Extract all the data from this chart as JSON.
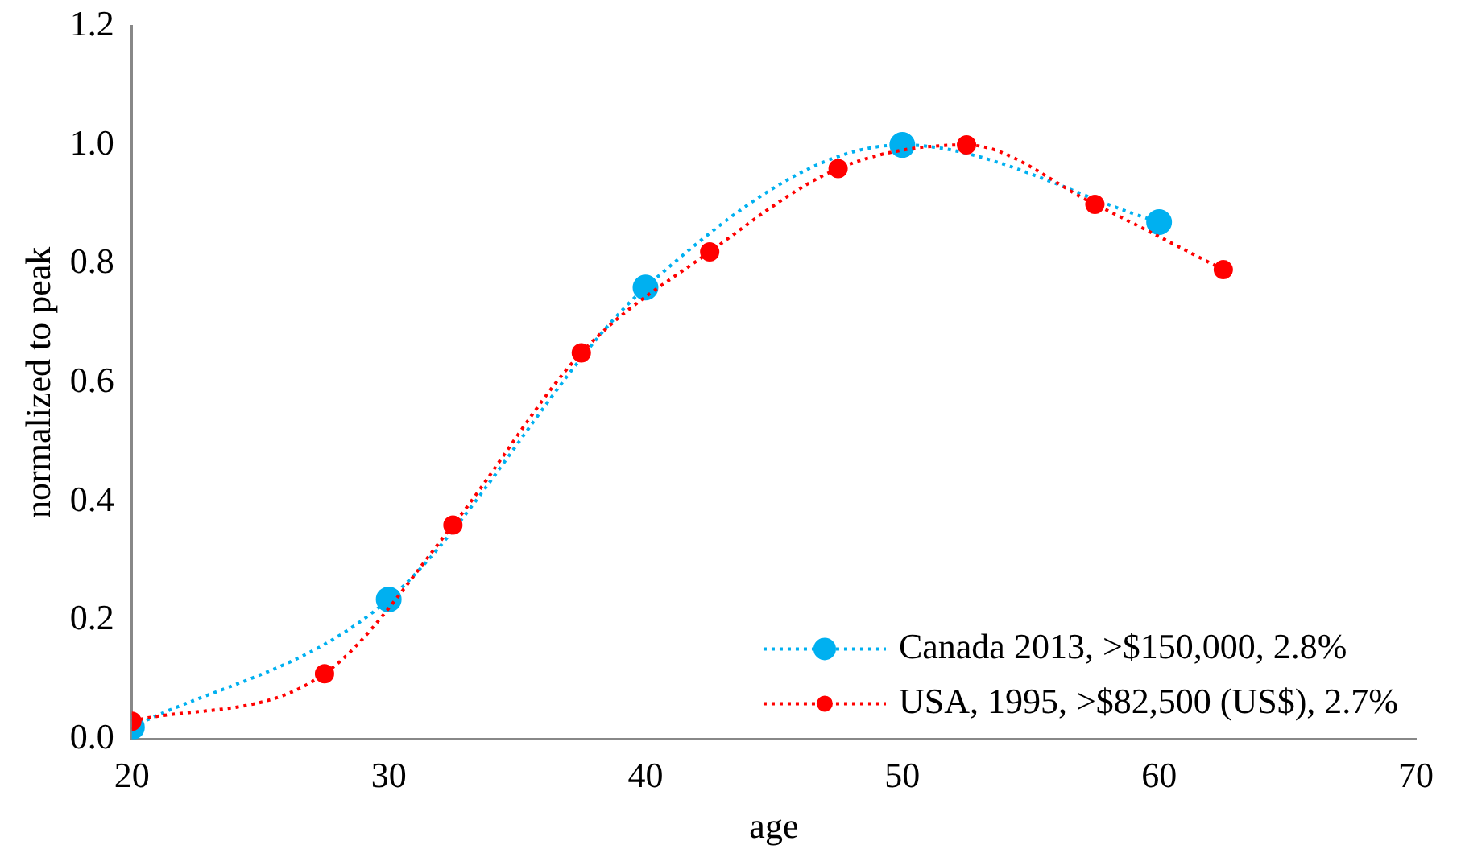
{
  "chart_data": {
    "type": "line",
    "xlabel": "age",
    "ylabel": "normalized to peak",
    "xlim": [
      20,
      70
    ],
    "xticks": [
      20,
      30,
      40,
      50,
      60,
      70
    ],
    "ylim": [
      0,
      1.2
    ],
    "yticks": [
      {
        "value": 0,
        "label": "0.0"
      },
      {
        "value": 0.2,
        "label": "0.2"
      },
      {
        "value": 0.4,
        "label": "0.4"
      },
      {
        "value": 0.6,
        "label": "0.6"
      },
      {
        "value": 0.8,
        "label": "0.8"
      },
      {
        "value": 1,
        "label": "1.0"
      },
      {
        "value": 1.2,
        "label": "1.2"
      }
    ],
    "grid": false,
    "legend": "bottom right",
    "marker": "circle",
    "line_style": "dotted",
    "series": [
      {
        "name": "Canada 2013, >$150,000, 2.8%",
        "color": "#00b0f0",
        "x": [
          20,
          30,
          40,
          50,
          60
        ],
        "values": [
          0.02,
          0.235,
          0.76,
          1.0,
          0.87
        ]
      },
      {
        "name": "USA, 1995, >$82,500 (US$), 2.7%",
        "color": "#ff0000",
        "x": [
          20,
          27.5,
          32.5,
          37.5,
          42.5,
          47.5,
          52.5,
          57.5,
          62.5
        ],
        "values": [
          0.03,
          0.11,
          0.36,
          0.65,
          0.82,
          0.96,
          1.0,
          0.9,
          0.79
        ]
      }
    ]
  }
}
